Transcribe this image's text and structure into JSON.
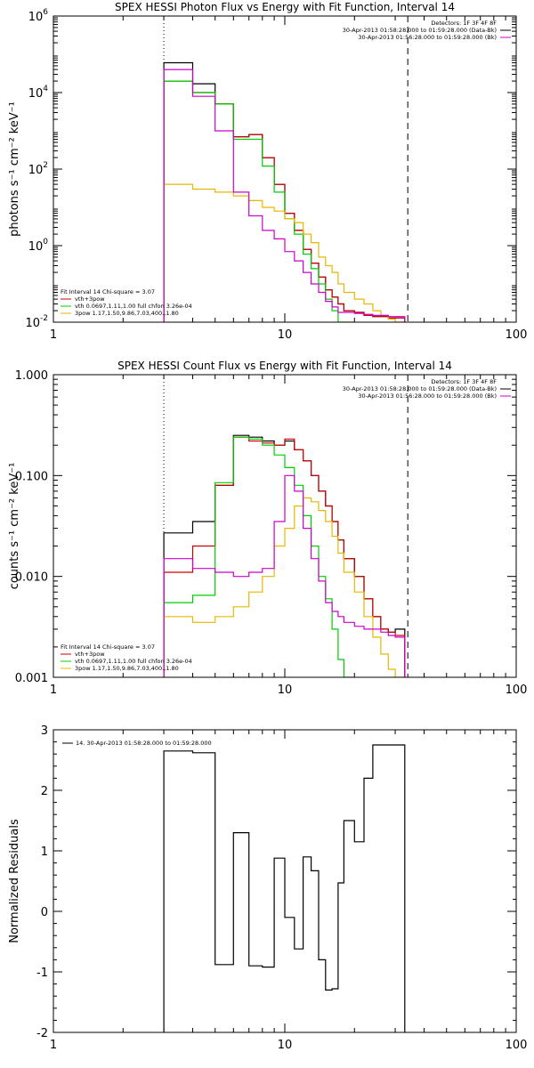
{
  "chart_data": [
    {
      "type": "line",
      "step": true,
      "title": "SPEX HESSI Photon Flux vs Energy with Fit Function, Interval 14",
      "xlabel": "",
      "ylabel": "photons s⁻¹ cm⁻² keV⁻¹",
      "xscale": "log",
      "yscale": "log",
      "xlim": [
        1,
        100
      ],
      "ylim": [
        0.01,
        1000000
      ],
      "x_ticks": [
        {
          "v": 1,
          "label": "1"
        },
        {
          "v": 10,
          "label": "10"
        },
        {
          "v": 100,
          "label": "100"
        }
      ],
      "y_ticks": [
        {
          "v": 0.01,
          "base": "10",
          "exp": "-2"
        },
        {
          "v": 1,
          "base": "10",
          "exp": "0"
        },
        {
          "v": 100,
          "base": "10",
          "exp": "2"
        },
        {
          "v": 10000,
          "base": "10",
          "exp": "4"
        },
        {
          "v": 1000000,
          "base": "10",
          "exp": "6"
        }
      ],
      "vlines": [
        {
          "x": 3,
          "style": "dotted"
        },
        {
          "x": 34,
          "style": "dashed"
        }
      ],
      "info_lines": [
        "Detectors: 1F 3F 4F 8F",
        "30-Apr-2013 01:58:28.000 to 01:59:28.000 (Data-Bk)",
        "30-Apr-2013 01:56:28.000 to 01:59:28.000 (Bk)"
      ],
      "info_colors": [
        "#000000",
        "#cc00cc"
      ],
      "legend_lines": [
        {
          "text": "Fit Interval 14    Chi-square = 3.07",
          "color": "#000000"
        },
        {
          "text": "vth+3pow",
          "color": "#cc0000"
        },
        {
          "text": "vth 0.0697,1.11,1.00  full chfon 3.26e-04",
          "color": "#00cc00"
        },
        {
          "text": "3pow 1.17,1.50,9.86,7.03,400.,1.80",
          "color": "#e6b800"
        }
      ],
      "series": [
        {
          "color": "#000000",
          "edges": [
            3,
            4,
            5,
            6,
            7,
            8,
            9,
            10,
            11,
            12,
            13,
            14,
            15,
            16,
            17,
            18,
            20,
            22,
            24,
            26,
            28,
            30,
            33
          ],
          "values": [
            60000,
            17000,
            5000,
            700,
            800,
            200,
            40,
            7,
            2.5,
            0.8,
            0.35,
            0.15,
            0.07,
            0.045,
            0.03,
            0.02,
            0.018,
            0.015,
            0.014,
            0.014,
            0.013,
            0.013
          ]
        },
        {
          "color": "#cc0000",
          "edges": [
            3,
            4,
            5,
            6,
            7,
            8,
            9,
            10,
            11,
            12,
            13,
            14,
            15,
            16,
            17,
            18,
            20,
            22,
            24,
            26,
            28,
            30,
            33
          ],
          "values": [
            20000,
            10000,
            5000,
            700,
            800,
            200,
            40,
            7,
            2.5,
            0.8,
            0.35,
            0.15,
            0.07,
            0.045,
            0.03,
            0.02,
            0.018,
            0.015,
            0.014,
            0.014,
            0.013,
            0.013
          ]
        },
        {
          "color": "#00cc00",
          "edges": [
            3,
            4,
            5,
            6,
            7,
            8,
            9,
            10,
            11,
            12,
            13,
            14,
            15,
            16,
            17,
            18,
            20
          ],
          "values": [
            20000,
            10000,
            5000,
            600,
            600,
            120,
            25,
            5,
            2,
            0.6,
            0.25,
            0.1,
            0.04,
            0.02,
            0.01,
            0.01
          ]
        },
        {
          "color": "#e6b800",
          "edges": [
            3,
            4,
            5,
            6,
            7,
            8,
            9,
            10,
            11,
            12,
            13,
            14,
            15,
            16,
            17,
            18,
            20,
            22,
            24,
            26,
            28,
            30,
            33
          ],
          "values": [
            40,
            30,
            25,
            20,
            15,
            10,
            8,
            5,
            4,
            2,
            1.2,
            0.5,
            0.3,
            0.2,
            0.1,
            0.06,
            0.04,
            0.03,
            0.02,
            0.015,
            0.012,
            0.01
          ]
        },
        {
          "color": "#cc00cc",
          "edges": [
            3,
            4,
            5,
            6,
            7,
            8,
            9,
            10,
            11,
            12,
            13,
            14,
            15,
            16,
            17,
            18,
            20,
            22,
            24,
            26,
            28,
            30,
            33
          ],
          "values": [
            40000,
            8000,
            1000,
            25,
            6,
            2.5,
            1.5,
            0.7,
            0.4,
            0.2,
            0.1,
            0.06,
            0.035,
            0.025,
            0.018,
            0.018,
            0.017,
            0.016,
            0.015,
            0.015,
            0.014,
            0.014
          ]
        }
      ]
    },
    {
      "type": "line",
      "step": true,
      "title": "SPEX HESSI Count Flux vs Energy with Fit Function, Interval 14",
      "xlabel": "",
      "ylabel": "counts s⁻¹ cm⁻² keV⁻¹",
      "xscale": "log",
      "yscale": "log",
      "xlim": [
        1,
        100
      ],
      "ylim": [
        0.001,
        1.0
      ],
      "x_ticks": [
        {
          "v": 1,
          "label": "1"
        },
        {
          "v": 10,
          "label": "10"
        },
        {
          "v": 100,
          "label": "100"
        }
      ],
      "y_ticks": [
        {
          "v": 0.001,
          "label": "0.001"
        },
        {
          "v": 0.01,
          "label": "0.010"
        },
        {
          "v": 0.1,
          "label": "0.100"
        },
        {
          "v": 1.0,
          "label": "1.000"
        }
      ],
      "vlines": [
        {
          "x": 3,
          "style": "dotted"
        },
        {
          "x": 34,
          "style": "dashed"
        }
      ],
      "info_lines": [
        "Detectors: 1F 3F 4F 8F",
        "30-Apr-2013 01:58:28.000 to 01:59:28.000 (Data-Bk)",
        "30-Apr-2013 01:56:28.000 to 01:59:28.000 (Bk)"
      ],
      "info_colors": [
        "#000000",
        "#cc00cc"
      ],
      "legend_lines": [
        {
          "text": "Fit Interval 14    Chi-square = 3.07",
          "color": "#000000"
        },
        {
          "text": "vth+3pow",
          "color": "#cc0000"
        },
        {
          "text": "vth 0.0697,1.11,1.00  full chfon 3.26e-04",
          "color": "#00cc00"
        },
        {
          "text": "3pow 1.17,1.50,9.86,7.03,400.,1.80",
          "color": "#e6b800"
        }
      ],
      "series": [
        {
          "color": "#000000",
          "edges": [
            3,
            4,
            5,
            6,
            7,
            8,
            9,
            10,
            11,
            12,
            13,
            14,
            15,
            16,
            17,
            18,
            20,
            22,
            24,
            26,
            28,
            30,
            33
          ],
          "values": [
            0.027,
            0.035,
            0.08,
            0.25,
            0.24,
            0.22,
            0.2,
            0.22,
            0.18,
            0.14,
            0.1,
            0.07,
            0.05,
            0.035,
            0.023,
            0.015,
            0.01,
            0.006,
            0.004,
            0.003,
            0.0028,
            0.003
          ]
        },
        {
          "color": "#cc0000",
          "edges": [
            3,
            4,
            5,
            6,
            7,
            8,
            9,
            10,
            11,
            12,
            13,
            14,
            15,
            16,
            17,
            18,
            20,
            22,
            24,
            26,
            28,
            30,
            33
          ],
          "values": [
            0.011,
            0.02,
            0.08,
            0.24,
            0.22,
            0.21,
            0.2,
            0.23,
            0.18,
            0.14,
            0.1,
            0.07,
            0.05,
            0.035,
            0.023,
            0.015,
            0.01,
            0.006,
            0.004,
            0.003,
            0.0028,
            0.0026
          ]
        },
        {
          "color": "#00cc00",
          "edges": [
            3,
            4,
            5,
            6,
            7,
            8,
            9,
            10,
            11,
            12,
            13,
            14,
            15,
            16,
            17,
            18,
            20
          ],
          "values": [
            0.0055,
            0.0065,
            0.085,
            0.24,
            0.23,
            0.2,
            0.16,
            0.12,
            0.08,
            0.04,
            0.02,
            0.01,
            0.006,
            0.003,
            0.0015,
            0.001
          ]
        },
        {
          "color": "#e6b800",
          "edges": [
            3,
            4,
            5,
            6,
            7,
            8,
            9,
            10,
            11,
            12,
            13,
            14,
            15,
            16,
            17,
            18,
            20,
            22,
            24,
            26,
            28,
            30,
            33
          ],
          "values": [
            0.004,
            0.0035,
            0.004,
            0.005,
            0.007,
            0.01,
            0.02,
            0.03,
            0.05,
            0.06,
            0.055,
            0.045,
            0.035,
            0.025,
            0.017,
            0.011,
            0.007,
            0.004,
            0.0025,
            0.0017,
            0.0012,
            0.001
          ]
        },
        {
          "color": "#cc00cc",
          "edges": [
            3,
            4,
            5,
            6,
            7,
            8,
            9,
            10,
            11,
            12,
            13,
            14,
            15,
            16,
            17,
            18,
            20,
            22,
            24,
            26,
            28,
            30,
            33
          ],
          "values": [
            0.015,
            0.012,
            0.011,
            0.01,
            0.011,
            0.012,
            0.035,
            0.1,
            0.07,
            0.03,
            0.015,
            0.009,
            0.0055,
            0.0045,
            0.004,
            0.0035,
            0.0032,
            0.003,
            0.003,
            0.0028,
            0.0026,
            0.0025
          ]
        }
      ]
    },
    {
      "type": "line",
      "step": true,
      "title": "",
      "xlabel": "",
      "ylabel": "Normalized Residuals",
      "xscale": "log",
      "yscale": "linear",
      "xlim": [
        1,
        100
      ],
      "ylim": [
        -2.0,
        3.0
      ],
      "x_ticks": [
        {
          "v": 1,
          "label": "1"
        },
        {
          "v": 10,
          "label": "10"
        },
        {
          "v": 100,
          "label": "100"
        }
      ],
      "y_ticks": [
        {
          "v": -2,
          "label": "-2"
        },
        {
          "v": -1,
          "label": "-1"
        },
        {
          "v": 0,
          "label": "0"
        },
        {
          "v": 1,
          "label": "1"
        },
        {
          "v": 2,
          "label": "2"
        },
        {
          "v": 3,
          "label": "3"
        }
      ],
      "vlines": [],
      "info_lines": [],
      "legend_lines": [
        {
          "text": "14. 30-Apr-2013 01:58:28.000 to 01:59:28.000",
          "color": "#000000"
        }
      ],
      "series": [
        {
          "color": "#000000",
          "edges": [
            3,
            4,
            5,
            6,
            7,
            8,
            9,
            10,
            11,
            12,
            13,
            14,
            15,
            16,
            17,
            18,
            20,
            22,
            24,
            26,
            28,
            30,
            33
          ],
          "values": [
            2.65,
            2.62,
            -0.88,
            1.3,
            -0.9,
            -0.92,
            0.88,
            -0.1,
            -0.62,
            0.9,
            0.67,
            -0.8,
            -1.3,
            -1.28,
            0.47,
            1.5,
            1.15,
            2.2,
            2.75,
            2.75,
            2.75,
            2.75
          ],
          "drop_to_bottom": true
        }
      ]
    }
  ]
}
